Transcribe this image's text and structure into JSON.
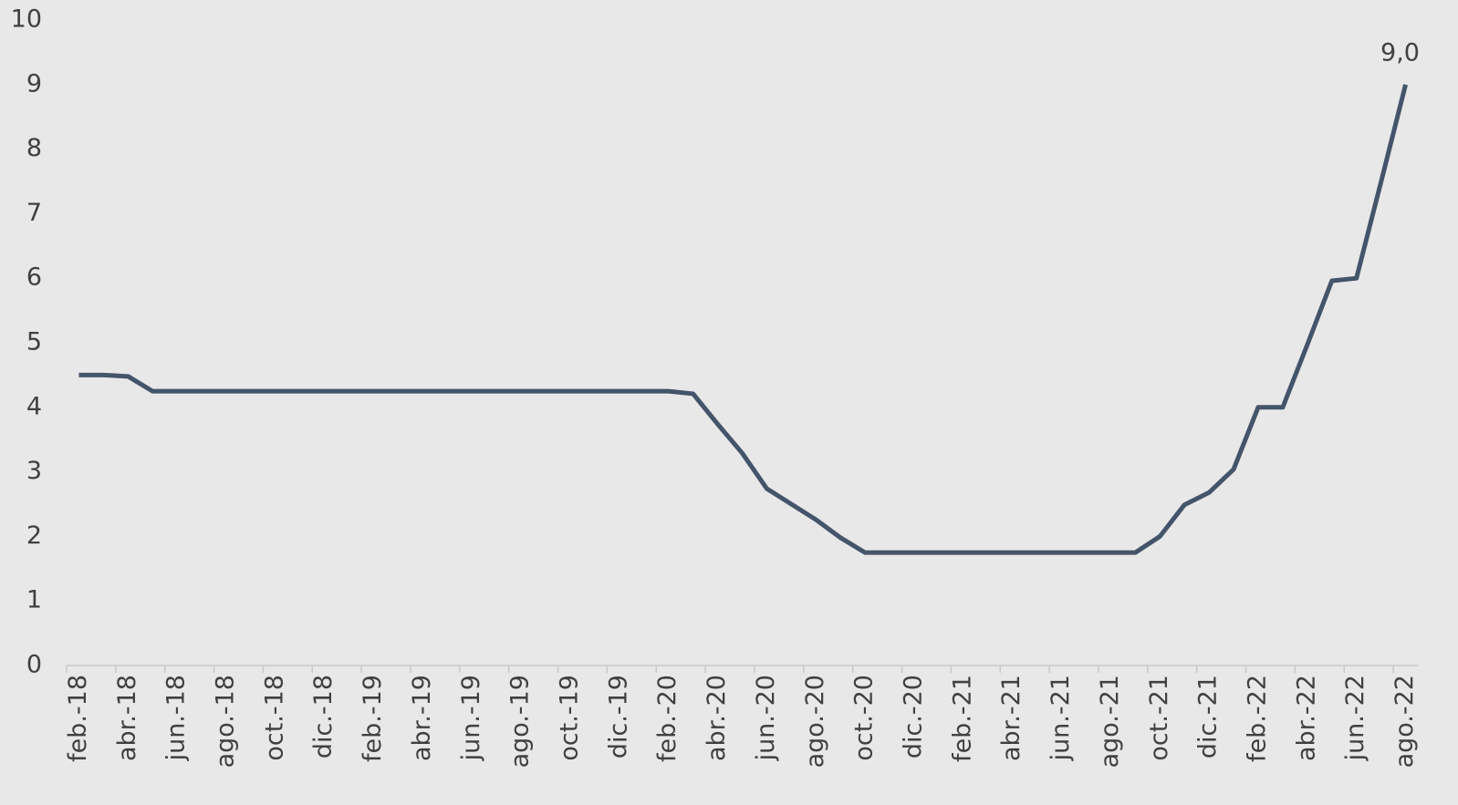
{
  "chart_data": {
    "type": "line",
    "categories": [
      "feb.-18",
      null,
      "abr.-18",
      null,
      "jun.-18",
      null,
      "ago.-18",
      null,
      "oct.-18",
      null,
      "dic.-18",
      null,
      "feb.-19",
      null,
      "abr.-19",
      null,
      "jun.-19",
      null,
      "ago.-19",
      null,
      "oct.-19",
      null,
      "dic.-19",
      null,
      "feb.-20",
      null,
      "abr.-20",
      null,
      "jun.-20",
      null,
      "ago.-20",
      null,
      "oct.-20",
      null,
      "dic.-20",
      null,
      "feb.-21",
      null,
      "abr.-21",
      null,
      "jun.-21",
      null,
      "ago.-21",
      null,
      "oct.-21",
      null,
      "dic.-21",
      null,
      "feb.-22",
      null,
      "abr.-22",
      null,
      "jun.-22",
      null,
      "ago.-22"
    ],
    "values": [
      4.5,
      4.5,
      4.48,
      4.25,
      4.25,
      4.25,
      4.25,
      4.25,
      4.25,
      4.25,
      4.25,
      4.25,
      4.25,
      4.25,
      4.25,
      4.25,
      4.25,
      4.25,
      4.25,
      4.25,
      4.25,
      4.25,
      4.25,
      4.25,
      4.25,
      4.21,
      3.74,
      3.29,
      2.74,
      2.5,
      2.26,
      1.98,
      1.75,
      1.75,
      1.75,
      1.75,
      1.75,
      1.75,
      1.75,
      1.75,
      1.75,
      1.75,
      1.75,
      1.75,
      2.0,
      2.49,
      2.68,
      3.04,
      4.0,
      4.0,
      4.97,
      5.96,
      6.0,
      7.49,
      9.0
    ],
    "value_labels": [
      null,
      null,
      null,
      null,
      null,
      null,
      null,
      null,
      null,
      null,
      null,
      null,
      null,
      null,
      null,
      null,
      null,
      null,
      null,
      null,
      null,
      null,
      null,
      null,
      null,
      null,
      null,
      null,
      null,
      null,
      null,
      null,
      null,
      null,
      null,
      null,
      null,
      null,
      null,
      null,
      null,
      null,
      null,
      null,
      null,
      null,
      null,
      null,
      null,
      null,
      null,
      null,
      null,
      null,
      "9,0"
    ],
    "color": "#44546a",
    "ylim": [
      0,
      10
    ],
    "yticks": [
      0,
      1,
      2,
      3,
      4,
      5,
      6,
      7,
      8,
      9,
      10
    ],
    "grid": false
  }
}
